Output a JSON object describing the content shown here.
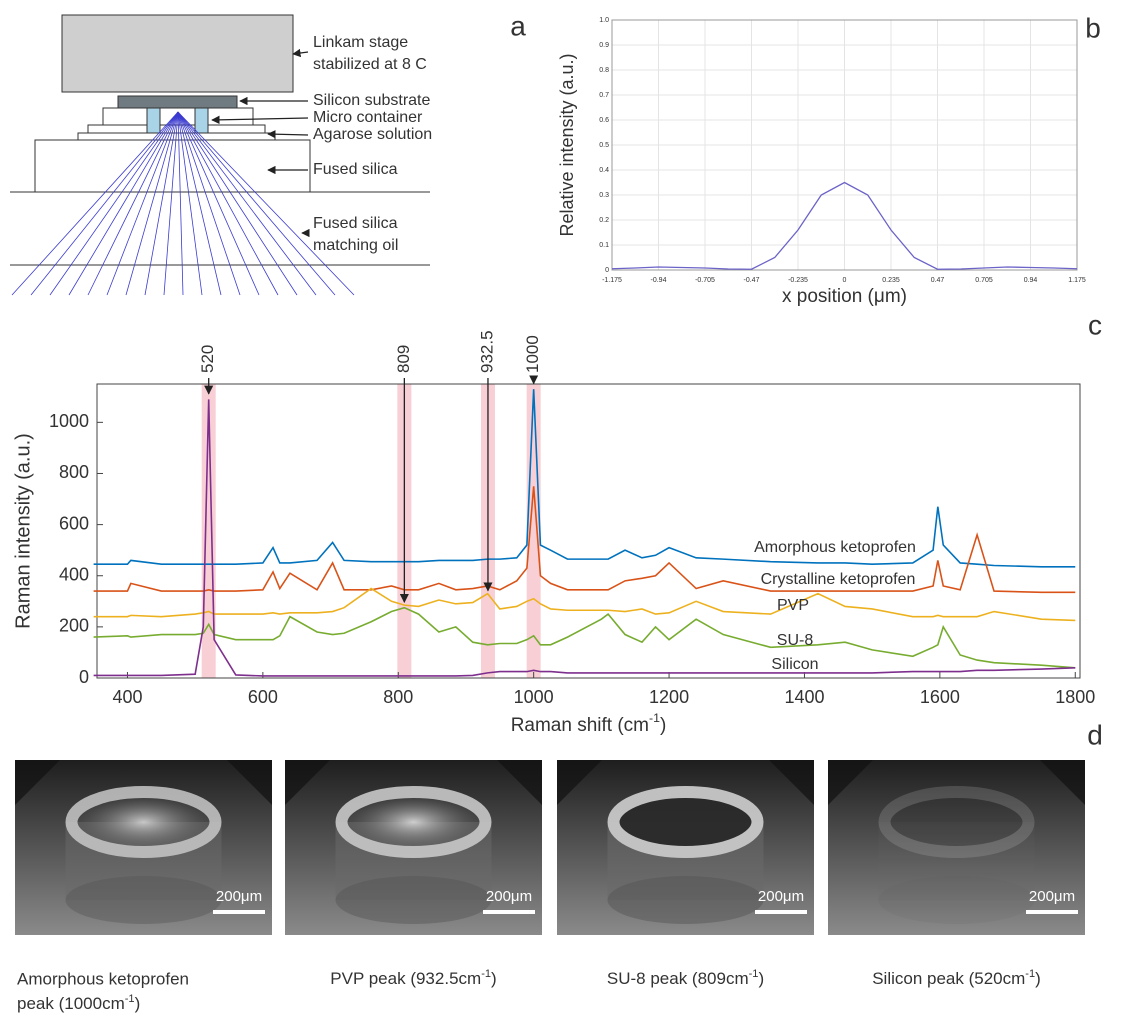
{
  "panel_labels": [
    "a",
    "b",
    "c",
    "d"
  ],
  "diagram": {
    "labels": [
      [
        "Linkam stage",
        "stabilized at 8 C"
      ],
      [
        "Silicon substrate"
      ],
      [
        "Micro container"
      ],
      [
        "Agarose solution"
      ],
      [
        "Fused silica"
      ],
      [
        "Fused silica",
        "matching oil"
      ]
    ]
  },
  "chart_data": [
    {
      "type": "line",
      "y_label": "Relative intensity (a.u.)",
      "x_label": "x position (μm)",
      "grid": true,
      "xlim": [
        -1.175,
        1.175
      ],
      "ylim": [
        0,
        1
      ],
      "xticks": [
        -1.175,
        -0.94,
        -0.705,
        -0.47,
        -0.235,
        0,
        0.235,
        0.47,
        0.705,
        0.94,
        1.175
      ],
      "yticks": [
        0,
        0.1,
        0.2,
        0.3,
        0.4,
        0.5,
        0.6,
        0.7,
        0.8,
        0.9,
        {
          "value": 1,
          "label": "1.0"
        }
      ],
      "x": [
        -1.175,
        -1.0575,
        -0.94,
        -0.8225,
        -0.705,
        -0.5875,
        -0.47,
        -0.3525,
        -0.235,
        -0.1175,
        0,
        0.1175,
        0.235,
        0.3525,
        0.47,
        0.5875,
        0.705,
        0.8225,
        0.94,
        1.0575,
        1.175
      ],
      "series": [
        {
          "color": "#6b63c8",
          "values": [
            0.005,
            0.008,
            0.012,
            0.01,
            0.008,
            0.004,
            0.003,
            0.05,
            0.16,
            0.3,
            0.35,
            0.3,
            0.16,
            0.05,
            0.003,
            0.004,
            0.008,
            0.012,
            0.01,
            0.008,
            0.005
          ]
        }
      ]
    },
    {
      "type": "line",
      "y_label": "Raman intensity (a.u.)",
      "x_label": {
        "text": "Raman shift (cm",
        "sup": "-1",
        "end": ")"
      },
      "grid": false,
      "xlim": [
        355,
        1807
      ],
      "ylim": [
        0,
        1150
      ],
      "xticks": [
        400,
        600,
        800,
        1000,
        1200,
        1400,
        1600,
        1800
      ],
      "yticks": [
        0,
        200,
        400,
        600,
        800,
        1000
      ],
      "highlight_bands": [
        520,
        809,
        932.5,
        1000
      ],
      "annotations": [
        {
          "x": 520,
          "y": 1100
        },
        {
          "x": 809,
          "y": 285
        },
        {
          "x": 932.5,
          "y": 330
        },
        {
          "x": 1000,
          "y": 1140
        }
      ],
      "x": [
        350,
        400,
        405,
        450,
        500,
        512,
        520,
        528,
        560,
        600,
        615,
        625,
        640,
        680,
        703,
        720,
        760,
        790,
        809,
        830,
        860,
        885,
        910,
        932,
        950,
        975,
        990,
        1000,
        1010,
        1025,
        1050,
        1100,
        1110,
        1135,
        1160,
        1180,
        1200,
        1240,
        1280,
        1350,
        1420,
        1460,
        1500,
        1560,
        1590,
        1597,
        1605,
        1630,
        1655,
        1680,
        1750,
        1800
      ],
      "series": [
        {
          "name": "Amorphous ketoprofen",
          "color": "#0072bd",
          "values": [
            445,
            445,
            460,
            445,
            445,
            445,
            445,
            445,
            445,
            450,
            510,
            450,
            450,
            460,
            530,
            460,
            455,
            455,
            455,
            455,
            460,
            460,
            460,
            465,
            465,
            470,
            520,
            1130,
            520,
            500,
            465,
            465,
            465,
            500,
            470,
            480,
            510,
            470,
            465,
            455,
            450,
            450,
            445,
            450,
            500,
            670,
            520,
            450,
            445,
            440,
            435,
            435
          ]
        },
        {
          "name": "Crystalline ketoprofen",
          "color": "#d95319",
          "values": [
            340,
            340,
            370,
            340,
            340,
            340,
            345,
            340,
            340,
            345,
            415,
            350,
            410,
            345,
            450,
            345,
            345,
            360,
            345,
            345,
            370,
            345,
            350,
            360,
            345,
            380,
            430,
            750,
            400,
            370,
            345,
            345,
            345,
            380,
            390,
            400,
            450,
            350,
            380,
            340,
            340,
            340,
            340,
            340,
            360,
            460,
            360,
            345,
            560,
            340,
            335,
            335
          ]
        },
        {
          "name": "PVP",
          "color": "#edb120",
          "values": [
            240,
            240,
            245,
            240,
            250,
            255,
            260,
            250,
            250,
            250,
            255,
            250,
            255,
            255,
            260,
            275,
            350,
            300,
            285,
            280,
            305,
            290,
            295,
            330,
            270,
            280,
            300,
            310,
            290,
            270,
            265,
            265,
            265,
            260,
            270,
            250,
            255,
            300,
            260,
            250,
            330,
            280,
            270,
            240,
            240,
            245,
            240,
            240,
            240,
            260,
            230,
            225
          ]
        },
        {
          "name": "SU-8",
          "color": "#77ac30",
          "values": [
            160,
            165,
            160,
            170,
            170,
            175,
            210,
            170,
            150,
            150,
            150,
            165,
            240,
            180,
            170,
            175,
            220,
            260,
            275,
            250,
            180,
            200,
            140,
            130,
            135,
            135,
            150,
            165,
            130,
            130,
            160,
            230,
            250,
            170,
            140,
            200,
            150,
            230,
            170,
            120,
            130,
            140,
            110,
            85,
            120,
            130,
            200,
            90,
            70,
            60,
            50,
            40
          ]
        },
        {
          "name": "Silicon",
          "color": "#7e2f8e",
          "values": [
            10,
            10,
            10,
            10,
            15,
            200,
            1090,
            150,
            12,
            8,
            8,
            8,
            8,
            8,
            8,
            8,
            8,
            8,
            8,
            8,
            8,
            8,
            10,
            20,
            25,
            25,
            25,
            30,
            25,
            25,
            20,
            20,
            20,
            20,
            20,
            20,
            20,
            20,
            20,
            20,
            20,
            20,
            20,
            25,
            25,
            25,
            25,
            25,
            30,
            30,
            35,
            40
          ]
        }
      ]
    }
  ],
  "images": [
    {
      "scale_bar": "200μm",
      "caption": {
        "lines": [
          "Amorphous ketoprofen",
          "peak (1000cm"
        ],
        "sup": "-1",
        "end": ")"
      }
    },
    {
      "scale_bar": "200μm",
      "caption": {
        "lines": [
          "PVP peak (932.5cm"
        ],
        "sup": "-1",
        "end": ")"
      }
    },
    {
      "scale_bar": "200μm",
      "caption": {
        "lines": [
          "SU-8  peak (809cm"
        ],
        "sup": "-1",
        "end": ")"
      }
    },
    {
      "scale_bar": "200μm",
      "caption": {
        "lines": [
          "Silicon peak (520cm"
        ],
        "sup": "-1",
        "end": ")"
      }
    }
  ]
}
